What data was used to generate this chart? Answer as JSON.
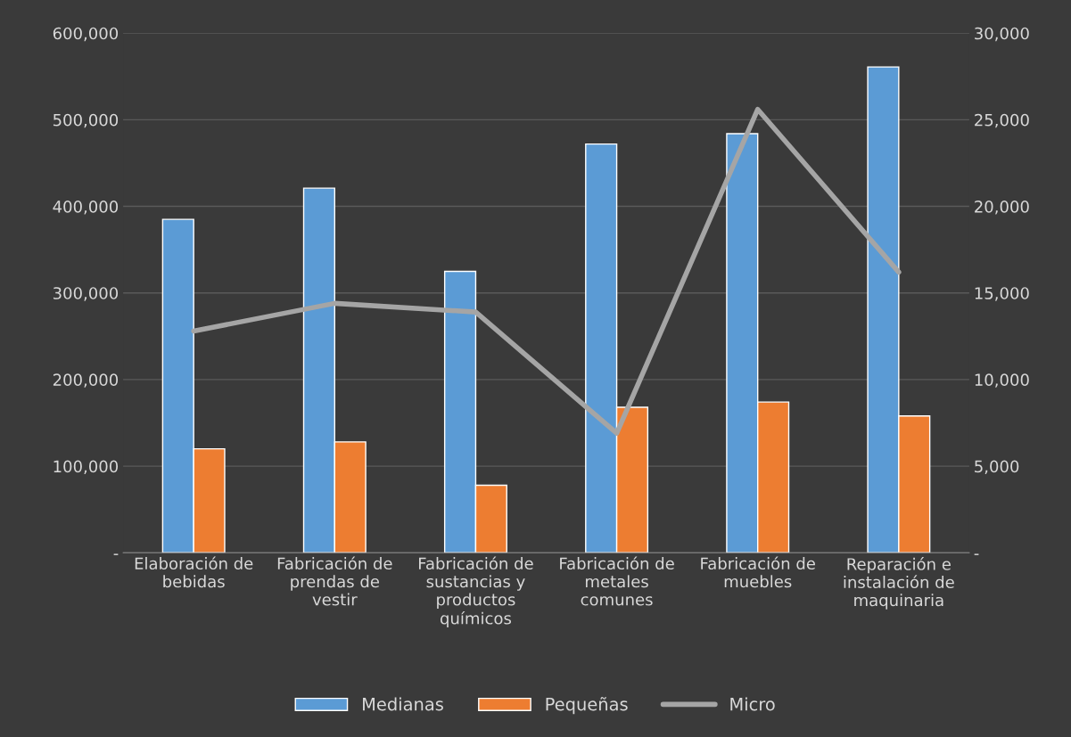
{
  "chart_data": {
    "type": "bar",
    "categories": [
      "Elaboración de\nbebidas",
      "Fabricación de\nprendas de\nvestir",
      "Fabricación de\nsustancias y\nproductos\nquímicos",
      "Fabricación de\nmetales\ncomunes",
      "Fabricación de\nmuebles",
      "Reparación e\ninstalación de\nmaquinaria"
    ],
    "series": [
      {
        "name": "Medianas",
        "color": "#5b9bd5",
        "values": [
          385000,
          421000,
          325000,
          472000,
          484000,
          561000
        ]
      },
      {
        "name": "Pequeñas",
        "color": "#ed7d31",
        "values": [
          120000,
          128000,
          78000,
          168000,
          174000,
          158000
        ]
      },
      {
        "name": "Micro",
        "type": "line",
        "axis": "y2",
        "color": "#a5a5a5",
        "values": [
          12800,
          14400,
          13900,
          6900,
          25600,
          16200
        ]
      }
    ],
    "ylim": [
      0,
      600000
    ],
    "yticks": [
      {
        "value": 0,
        "label": "-"
      },
      {
        "value": 100000,
        "label": "100,000"
      },
      {
        "value": 200000,
        "label": "200,000"
      },
      {
        "value": 300000,
        "label": "300,000"
      },
      {
        "value": 400000,
        "label": "400,000"
      },
      {
        "value": 500000,
        "label": "500,000"
      },
      {
        "value": 600000,
        "label": "600,000"
      }
    ],
    "y2lim": [
      0,
      30000
    ],
    "y2ticks": [
      {
        "value": 0,
        "label": "-"
      },
      {
        "value": 5000,
        "label": "5,000"
      },
      {
        "value": 10000,
        "label": "10,000"
      },
      {
        "value": 15000,
        "label": "15,000"
      },
      {
        "value": 20000,
        "label": "20,000"
      },
      {
        "value": 25000,
        "label": "25,000"
      },
      {
        "value": 30000,
        "label": "30,000"
      }
    ],
    "grid": "y",
    "legend": "bottom"
  }
}
